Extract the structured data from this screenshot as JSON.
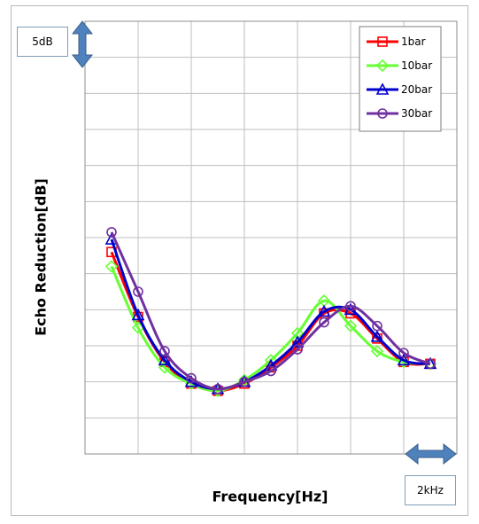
{
  "chart_data": {
    "type": "line",
    "title": "",
    "xlabel": "Frequency[Hz]",
    "ylabel": "Echo Reduction[dB]",
    "x_scale_label": "2kHz",
    "y_scale_label": "5dB",
    "xlim": [
      0,
      14
    ],
    "ylim": [
      0,
      24
    ],
    "grid": true,
    "legend_position": "top-right",
    "series": [
      {
        "name": "1bar",
        "color": "#ff0000",
        "marker": "square",
        "x": [
          1,
          2,
          3,
          4,
          5,
          6,
          7,
          8,
          9,
          10,
          11,
          12,
          13
        ],
        "y": [
          11.2,
          7.6,
          5.1,
          3.9,
          3.5,
          3.9,
          4.8,
          6.0,
          7.8,
          7.8,
          6.4,
          5.1,
          5.0
        ]
      },
      {
        "name": "10bar",
        "color": "#66ff33",
        "marker": "diamond",
        "x": [
          1,
          2,
          3,
          4,
          5,
          6,
          7,
          8,
          9,
          10,
          11,
          12,
          13
        ],
        "y": [
          10.4,
          7.0,
          4.8,
          3.9,
          3.5,
          4.1,
          5.2,
          6.7,
          8.5,
          7.1,
          5.7,
          5.1,
          5.0
        ]
      },
      {
        "name": "20bar",
        "color": "#0000cc",
        "marker": "triangle",
        "x": [
          1,
          2,
          3,
          4,
          5,
          6,
          7,
          8,
          9,
          10,
          11,
          12,
          13
        ],
        "y": [
          11.9,
          7.7,
          5.2,
          4.0,
          3.6,
          4.0,
          4.9,
          6.2,
          7.9,
          8.0,
          6.5,
          5.2,
          5.0
        ]
      },
      {
        "name": "30bar",
        "color": "#7030a0",
        "marker": "circle",
        "x": [
          1,
          2,
          3,
          4,
          5,
          6,
          7,
          8,
          9,
          10,
          11,
          12,
          13
        ],
        "y": [
          12.3,
          9.0,
          5.7,
          4.2,
          3.6,
          4.0,
          4.6,
          5.8,
          7.3,
          8.2,
          7.1,
          5.6,
          5.0
        ]
      }
    ]
  }
}
